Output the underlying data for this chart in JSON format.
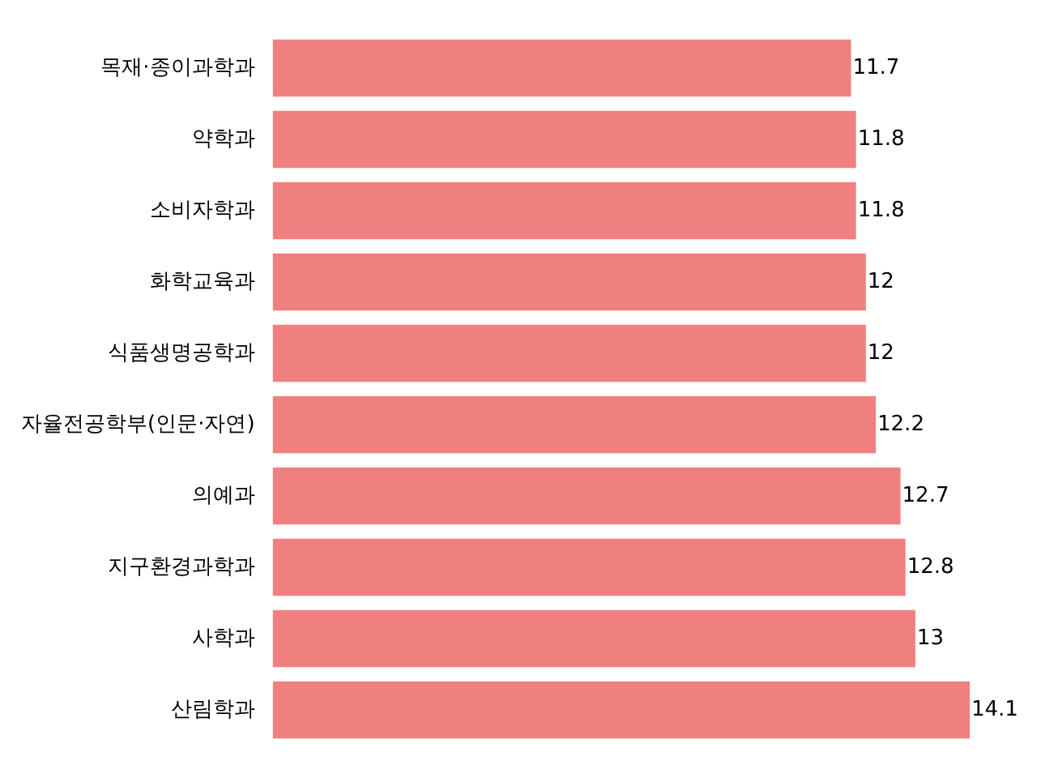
{
  "chart_data": {
    "type": "bar",
    "orientation": "horizontal",
    "data_labels": true,
    "tick_labels": "y",
    "categories": [
      "목재·종이과학과",
      "약학과",
      "소비자학과",
      "화학교육과",
      "식품생명공학과",
      "자율전공학부(인문·자연)",
      "의예과",
      "지구환경과학과",
      "사학과",
      "산림학과"
    ],
    "values": [
      11.7,
      11.8,
      11.8,
      12,
      12,
      12.2,
      12.7,
      12.8,
      13,
      14.1
    ],
    "color": "#f08080"
  }
}
